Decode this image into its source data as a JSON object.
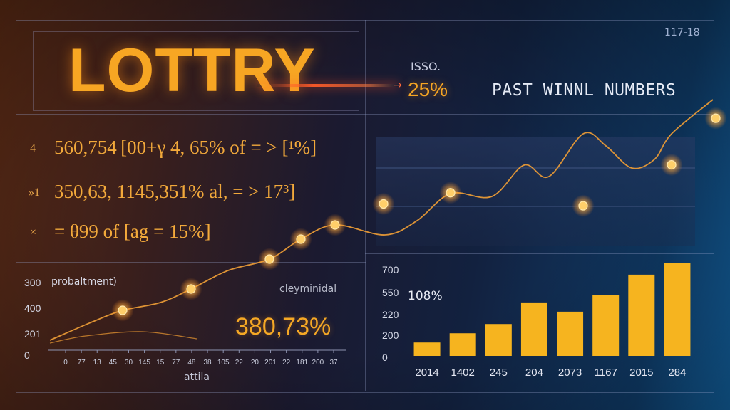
{
  "logo": "LOTTRY",
  "issue_label": "ISSO.",
  "issue_value": "25%",
  "section_title": "PAST WINNL NUMBERS",
  "corner_code": "117-18",
  "stats": [
    {
      "marker": "4",
      "text": "560,754 [00+γ 4, 65% of = > [¹%]"
    },
    {
      "marker": "»1",
      "text": "350,63, 1145,351% al, = > 17³]"
    },
    {
      "marker": "×",
      "text": "= θ99 of [ag = 15%]"
    }
  ],
  "bottom_left": {
    "series_label": "probaltment)",
    "right_label": "cleyminidal",
    "big_value": "380,73%",
    "xlabel": "attila"
  },
  "bottom_right": {
    "inner_label": "108%"
  },
  "colors": {
    "accent": "#f7a623",
    "bar": "#f6b41f",
    "glow": "#ffb347",
    "panel_line": "#8a93c8"
  },
  "chart_data": [
    {
      "type": "line",
      "title": "",
      "series": [
        {
          "x": [
            40,
            280,
            472,
            538,
            632,
            818,
            942,
            1004
          ],
          "y": [
            52,
            80,
            68,
            148,
            160,
            146,
            190,
            240
          ]
        }
      ],
      "points": [
        {
          "x": 538,
          "y": 148
        },
        {
          "x": 632,
          "y": 160
        },
        {
          "x": 818,
          "y": 146
        },
        {
          "x": 942,
          "y": 190
        },
        {
          "x": 1004,
          "y": 240
        }
      ],
      "note": "Large glowing line across the upper-right panel and bottom-left, no axis values printed"
    },
    {
      "type": "line",
      "title": "",
      "ylabel_ticks": [
        "300",
        "400",
        "201",
        "0"
      ],
      "x_ticks": [
        "0",
        "77",
        "13",
        "45",
        "30",
        "145",
        "15",
        "77",
        "48",
        "38",
        "105",
        "22",
        "20",
        "201",
        "22",
        "181",
        "200",
        "37"
      ],
      "xlabel": "attila",
      "series": [
        {
          "name": "probaltment)",
          "points": [
            [
              0,
              0
            ],
            [
              45,
              2.2
            ],
            [
              105,
              3.9
            ]
          ]
        }
      ],
      "annotations": [
        "cleyminidal",
        "380,73%"
      ]
    },
    {
      "type": "bar",
      "title": "",
      "categories": [
        "2014",
        "1402",
        "245",
        "204",
        "2073",
        "1167",
        "2015",
        "284"
      ],
      "values": [
        130,
        220,
        310,
        520,
        430,
        590,
        790,
        900
      ],
      "ytick_labels": [
        "700",
        "550",
        "220",
        "200",
        "0"
      ],
      "ylim": [
        0,
        1000
      ],
      "annotation": "108%"
    }
  ]
}
